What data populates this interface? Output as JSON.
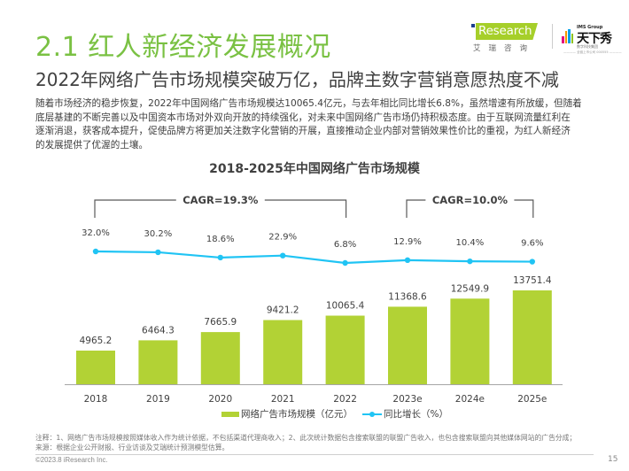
{
  "header": {
    "title": "2.1 红人新经济发展概况",
    "subtitle": "2022年网络广告市场规模突破万亿，品牌主数字营销意愿热度不减"
  },
  "logos": {
    "iresearch": {
      "text": "Research",
      "cn": "艾瑞咨询",
      "color": "#a6cf2a"
    },
    "txx": {
      "group": "IMS Group",
      "name": "天下秀",
      "sub": "数字科技集团",
      "tagline": "———— 全链上市公司 000555 ————"
    }
  },
  "body": {
    "lines": [
      "随着市场经济的稳步恢复，2022年中国网络广告市场规模达10065.4亿元，与去年相比同比增长6.8%，虽然增速有所放缓，但随着",
      "底层基建的不断完善以及中国资本市场对外双向开放的持续强化，对未来中国网络广告市场仍持积极态度。由于互联网流量红利在",
      "逐渐消退，获客成本提升，促使品牌方将更加关注数字化营销的开展，直接推动企业内部对营销效果性价比的重视，为红人新经济",
      "的发展提供了优渥的土壤。"
    ]
  },
  "chart_data": {
    "type": "bar",
    "title": "2018-2025年中国网络广告市场规模",
    "categories": [
      "2018",
      "2019",
      "2020",
      "2021",
      "2022",
      "2023e",
      "2024e",
      "2025e"
    ],
    "series": [
      {
        "name": "网络广告市场规模（亿元）",
        "type": "bar",
        "color": "#b2d235",
        "values": [
          4965.2,
          6464.3,
          7665.9,
          9421.2,
          10065.4,
          11368.6,
          12549.9,
          13751.4
        ],
        "labels": [
          "4965.2",
          "6464.3",
          "7665.9",
          "9421.2",
          "10065.4",
          "11368.6",
          "12549.9",
          "13751.4"
        ]
      },
      {
        "name": "同比增长（%）",
        "type": "line",
        "color": "#20c4f4",
        "values": [
          32.0,
          30.2,
          18.6,
          22.9,
          6.8,
          12.9,
          10.4,
          9.6
        ],
        "labels": [
          "32.0%",
          "30.2%",
          "18.6%",
          "22.9%",
          "6.8%",
          "12.9%",
          "10.4%",
          "9.6%"
        ]
      }
    ],
    "annotations": [
      {
        "text": "CAGR=19.3%",
        "from": "2018",
        "to": "2022"
      },
      {
        "text": "CAGR=10.0%",
        "from": "2023e",
        "to": "2025e"
      }
    ],
    "xlabel": "",
    "ylabel": "",
    "grid": false,
    "legend": "bottom"
  },
  "footer": {
    "notes": [
      "注释：1、网络广告市场规模按照媒体收入作为统计依据，不包括渠道代理商收入；2、此次统计数据包含搜索联盟的联盟广告收入，也包含搜索联盟向其他媒体网站的广告分成；",
      "来源：根据企业公开财报、行业访谈及艾瑞统计预测模型估算。"
    ],
    "copyright": "©2023.8 iResearch Inc.",
    "page_number": "15"
  }
}
